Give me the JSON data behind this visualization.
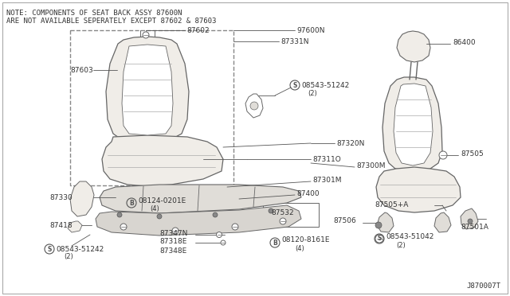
{
  "bg_color": "#ffffff",
  "line_color": "#555555",
  "fill_light": "#f0ede8",
  "fill_mid": "#e0ddd8",
  "note_line1": "NOTE: COMPONENTS OF SEAT BACK ASSY 87600N",
  "note_line2": "ARE NOT AVAILABLE SEPERATELY EXCEPT 87602 & 87603",
  "diagram_id": "J870007T",
  "text_color": "#333333",
  "seat_outline_color": "#666666"
}
